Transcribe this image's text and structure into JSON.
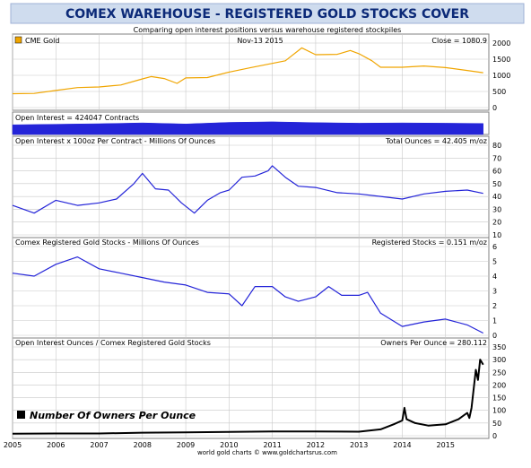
{
  "title": "COMEX WAREHOUSE - REGISTERED GOLD STOCKS COVER",
  "subtitle": "Comparing open interest positions versus warehouse registered stockpiles",
  "footer": "world gold charts © www.goldchartsrus.com",
  "colors": {
    "title_bg": "#cfdcee",
    "title_text": "#0c2a78",
    "gold": "#f0a500",
    "blue": "#2424d8",
    "black": "#000000",
    "grid": "#bfbfbf",
    "frame": "#808080"
  },
  "chart_data": [
    {
      "type": "line",
      "panel": "gold_price",
      "legend_label": "CME Gold",
      "date_label": "Nov-13  2015",
      "readout": "Close = 1080.9",
      "color": "#f0a500",
      "ylim": [
        0,
        2000
      ],
      "yticks": [
        0,
        500,
        1000,
        1500,
        2000
      ],
      "series": [
        {
          "x": [
            2005.0,
            2005.5,
            2006.0,
            2006.5,
            2007.0,
            2007.5,
            2008.0,
            2008.2,
            2008.5,
            2008.8,
            2009.0,
            2009.5,
            2010.0,
            2010.5,
            2011.0,
            2011.3,
            2011.68,
            2012.0,
            2012.5,
            2012.8,
            2013.0,
            2013.3,
            2013.5,
            2014.0,
            2014.5,
            2015.0,
            2015.5,
            2015.87
          ],
          "y": [
            430,
            440,
            530,
            620,
            640,
            700,
            890,
            960,
            900,
            750,
            920,
            930,
            1100,
            1240,
            1370,
            1450,
            1850,
            1640,
            1650,
            1770,
            1670,
            1450,
            1250,
            1250,
            1290,
            1240,
            1150,
            1081
          ]
        }
      ]
    },
    {
      "type": "area",
      "panel": "open_interest",
      "label": "Open Interest = 424047 Contracts",
      "color": "#2424d8",
      "series": [
        {
          "x": [
            2005.0,
            2006.0,
            2007.0,
            2008.0,
            2009.0,
            2010.0,
            2011.0,
            2012.0,
            2013.0,
            2014.0,
            2015.0,
            2015.87
          ],
          "y": [
            0.72,
            0.76,
            0.8,
            0.86,
            0.78,
            0.9,
            0.94,
            0.88,
            0.84,
            0.86,
            0.84,
            0.82
          ]
        }
      ]
    },
    {
      "type": "line",
      "panel": "total_ounces",
      "label": "Open Interest x 100oz Per Contract  -  Millions Of Ounces",
      "readout": "Total Ounces = 42.405 m/oz",
      "color": "#2424d8",
      "ylim": [
        10,
        80
      ],
      "yticks": [
        10,
        20,
        30,
        40,
        50,
        60,
        70,
        80
      ],
      "series": [
        {
          "x": [
            2005.0,
            2005.5,
            2006.0,
            2006.5,
            2007.0,
            2007.4,
            2007.8,
            2008.0,
            2008.3,
            2008.6,
            2008.9,
            2009.2,
            2009.5,
            2009.8,
            2010.0,
            2010.3,
            2010.6,
            2010.9,
            2011.0,
            2011.3,
            2011.6,
            2012.0,
            2012.5,
            2013.0,
            2013.5,
            2014.0,
            2014.5,
            2015.0,
            2015.5,
            2015.87
          ],
          "y": [
            33,
            27,
            37,
            33,
            35,
            38,
            50,
            58,
            46,
            45,
            35,
            27,
            37,
            43,
            45,
            55,
            56,
            60,
            64,
            55,
            48,
            47,
            43,
            42,
            40,
            38,
            42,
            44,
            45,
            42.4
          ]
        }
      ]
    },
    {
      "type": "line",
      "panel": "registered_stocks",
      "label": "Comex Registered Gold Stocks  -  Millions Of Ounces",
      "readout": "Registered Stocks = 0.151 m/oz",
      "color": "#2424d8",
      "ylim": [
        0,
        6
      ],
      "yticks": [
        0,
        1,
        2,
        3,
        4,
        5,
        6
      ],
      "series": [
        {
          "x": [
            2005.0,
            2005.5,
            2006.0,
            2006.5,
            2007.0,
            2007.5,
            2008.0,
            2008.5,
            2009.0,
            2009.5,
            2010.0,
            2010.3,
            2010.6,
            2011.0,
            2011.3,
            2011.6,
            2012.0,
            2012.3,
            2012.6,
            2013.0,
            2013.2,
            2013.5,
            2014.0,
            2014.5,
            2015.0,
            2015.5,
            2015.87
          ],
          "y": [
            4.2,
            4.0,
            4.8,
            5.3,
            4.5,
            4.2,
            3.9,
            3.6,
            3.4,
            2.9,
            2.8,
            2.0,
            3.3,
            3.3,
            2.6,
            2.3,
            2.6,
            3.3,
            2.7,
            2.7,
            2.9,
            1.5,
            0.6,
            0.9,
            1.1,
            0.7,
            0.15
          ]
        }
      ]
    },
    {
      "type": "line",
      "panel": "owners_per_ounce",
      "label": "Open Interest Ounces / Comex Registered Gold Stocks",
      "readout": "Owners Per Ounce = 280.112",
      "legend_label": "Number Of Owners Per Ounce",
      "color": "#000000",
      "ylim": [
        0,
        350
      ],
      "yticks": [
        0,
        50,
        100,
        150,
        200,
        250,
        300,
        350
      ],
      "series": [
        {
          "x": [
            2005.0,
            2006.0,
            2007.0,
            2008.0,
            2009.0,
            2010.0,
            2011.0,
            2012.0,
            2013.0,
            2013.5,
            2013.8,
            2014.0,
            2014.05,
            2014.1,
            2014.3,
            2014.6,
            2015.0,
            2015.3,
            2015.5,
            2015.55,
            2015.6,
            2015.7,
            2015.75,
            2015.8,
            2015.87
          ],
          "y": [
            8,
            9,
            9,
            12,
            13,
            15,
            17,
            17,
            16,
            25,
            45,
            60,
            110,
            65,
            50,
            40,
            45,
            65,
            90,
            70,
            110,
            260,
            220,
            300,
            280
          ]
        }
      ]
    }
  ],
  "x_axis": {
    "labels": [
      "2005",
      "2006",
      "2007",
      "2008",
      "2009",
      "2010",
      "2011",
      "2012",
      "2013",
      "2014",
      "2015"
    ],
    "xlim": [
      2005,
      2016
    ]
  }
}
